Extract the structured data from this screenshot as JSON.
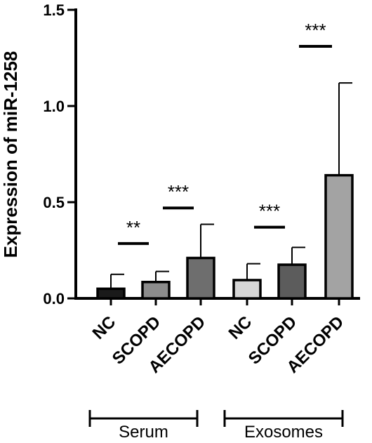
{
  "chart_data": {
    "type": "bar",
    "ylabel": "Expression of miR-1258",
    "ylim": [
      0,
      1.5
    ],
    "yticks": [
      "0.0",
      "0.5",
      "1.0",
      "1.5"
    ],
    "categories": [
      "NC",
      "SCOPD",
      "AECOPD",
      "NC",
      "SCOPD",
      "AECOPD"
    ],
    "values": [
      0.05,
      0.085,
      0.21,
      0.095,
      0.175,
      0.64
    ],
    "error": [
      0.075,
      0.055,
      0.175,
      0.085,
      0.09,
      0.48
    ],
    "colors": [
      "#1a1a1a",
      "#8c8c8c",
      "#6e6e6e",
      "#d6d6d6",
      "#5c5c5c",
      "#a3a3a3"
    ],
    "significance": [
      {
        "label": "**",
        "left": 1,
        "right": 2,
        "y": 0.285
      },
      {
        "label": "***",
        "left": 2,
        "right": 3,
        "y": 0.47
      },
      {
        "label": "***",
        "left": 4,
        "right": 5,
        "y": 0.37
      },
      {
        "label": "***",
        "left": 5,
        "right": 6,
        "y": 1.31
      }
    ],
    "groups": [
      {
        "label": "Serum",
        "from": 1,
        "to": 3
      },
      {
        "label": "Exosomes",
        "from": 4,
        "to": 6
      }
    ]
  }
}
